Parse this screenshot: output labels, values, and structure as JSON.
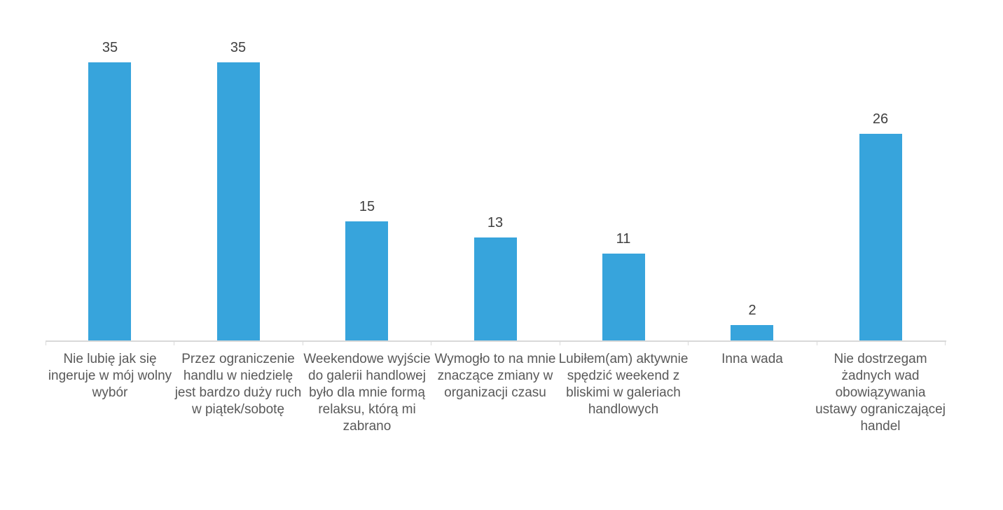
{
  "chart_data": {
    "type": "bar",
    "categories": [
      "Nie lubię jak się ingeruje w mój wolny wybór",
      "Przez ograniczenie handlu w niedzielę jest bardzo duży ruch w piątek/sobotę",
      "Weekendowe wyjście do galerii handlowej było dla mnie formą relaksu, którą mi zabrano",
      "Wymogło to na mnie znaczące zmiany w organizacji czasu",
      "Lubiłem(am) aktywnie spędzić weekend z bliskimi w galeriach handlowych",
      "Inna wada",
      "Nie dostrzegam żadnych wad obowiązywania ustawy ograniczającej handel"
    ],
    "values": [
      35,
      35,
      15,
      13,
      11,
      2,
      26
    ],
    "title": "",
    "xlabel": "",
    "ylabel": "",
    "ylim": [
      0,
      40
    ],
    "grid": false,
    "legend": false,
    "value_labels_shown": true,
    "bar_color": "#37A4DC",
    "axis_color": "#D9D9D9",
    "category_label_color": "#595959",
    "value_label_color": "#404040",
    "background_color": "#FFFFFF"
  }
}
